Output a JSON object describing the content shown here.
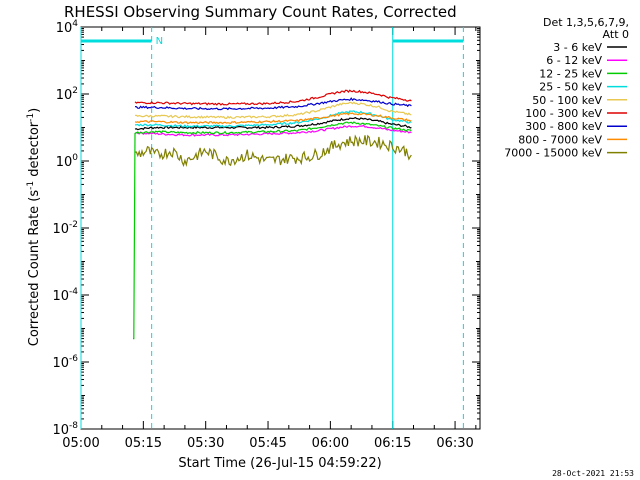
{
  "chart_data": {
    "type": "line",
    "title": "RHESSI Observing Summary Count Rates, Corrected",
    "xlabel": "Start Time (26-Jul-15 04:59:22)",
    "ylabel_main": "Corrected Count Rate (s",
    "ylabel_sup1": "-1",
    "ylabel_mid": " detector",
    "ylabel_sup2": "-1",
    "ylabel_end": ")",
    "x_unit": "minutes after 05:00",
    "xlim": [
      0,
      96
    ],
    "ylim_log10": [
      -8,
      4
    ],
    "y_scale": "log",
    "x_ticks": [
      {
        "v": 0,
        "label": "05:00"
      },
      {
        "v": 15,
        "label": "05:15"
      },
      {
        "v": 30,
        "label": "05:30"
      },
      {
        "v": 45,
        "label": "05:45"
      },
      {
        "v": 60,
        "label": "06:00"
      },
      {
        "v": 75,
        "label": "06:15"
      },
      {
        "v": 90,
        "label": "06:30"
      }
    ],
    "y_ticks": [
      {
        "exp": 4,
        "base": "10",
        "sup": "4"
      },
      {
        "exp": 2,
        "base": "10",
        "sup": "2"
      },
      {
        "exp": 0,
        "base": "10",
        "sup": "0"
      },
      {
        "exp": -2,
        "base": "10",
        "sup": "-2"
      },
      {
        "exp": -4,
        "base": "10",
        "sup": "-4"
      },
      {
        "exp": -6,
        "base": "10",
        "sup": "-6"
      },
      {
        "exp": -8,
        "base": "10",
        "sup": "-8"
      }
    ],
    "legend_header": [
      "Det 1,3,5,6,7,9,",
      "Att 0"
    ],
    "legend_placement": "right",
    "series": [
      {
        "name": "3 - 6 keV",
        "color": "#000000",
        "x": [
          13,
          18,
          25,
          35,
          45,
          52,
          57,
          62,
          65,
          68,
          72,
          74,
          78,
          79.5
        ],
        "y": [
          9,
          10,
          10,
          10,
          10,
          11,
          13,
          17,
          19,
          18,
          15,
          13,
          11,
          10
        ]
      },
      {
        "name": "6 - 12 keV",
        "color": "#ff00ff",
        "x": [
          13,
          18,
          25,
          35,
          45,
          52,
          57,
          62,
          65,
          68,
          72,
          74,
          78,
          79.5
        ],
        "y": [
          7,
          6.5,
          6,
          6,
          6.5,
          7,
          8,
          10,
          11,
          11,
          9.5,
          8.5,
          7.5,
          7
        ]
      },
      {
        "name": "12 - 25 keV",
        "color": "#00cc00",
        "x": [
          12.5,
          12.7,
          13,
          18,
          25,
          35,
          45,
          52,
          57,
          62,
          65,
          68,
          72,
          74,
          78,
          79.5
        ],
        "y": [
          5e-06,
          5e-06,
          7,
          7.5,
          7,
          7,
          7.5,
          8,
          10,
          13,
          14,
          13,
          11,
          10,
          8.5,
          8
        ]
      },
      {
        "name": "25 - 50 keV",
        "color": "#00dddd",
        "x": [
          13,
          18,
          25,
          35,
          45,
          52,
          57,
          62,
          65,
          68,
          72,
          74,
          78,
          79.5
        ],
        "y": [
          12,
          12,
          11,
          11,
          12,
          14,
          18,
          26,
          30,
          28,
          22,
          18,
          15,
          14
        ]
      },
      {
        "name": "50 - 100 keV",
        "color": "#e8c850",
        "x": [
          13,
          18,
          25,
          35,
          45,
          52,
          57,
          62,
          65,
          68,
          72,
          74,
          78,
          79.5
        ],
        "y": [
          22,
          22,
          21,
          20,
          21,
          24,
          32,
          48,
          55,
          50,
          40,
          32,
          26,
          24
        ]
      },
      {
        "name": "100 - 300 keV",
        "color": "#dd0000",
        "x": [
          13,
          18,
          25,
          35,
          45,
          52,
          57,
          62,
          65,
          68,
          72,
          74,
          78,
          79.5
        ],
        "y": [
          55,
          55,
          52,
          50,
          52,
          60,
          80,
          115,
          125,
          115,
          95,
          80,
          68,
          62
        ]
      },
      {
        "name": "300 - 800 keV",
        "color": "#0000cc",
        "x": [
          13,
          18,
          25,
          35,
          45,
          52,
          57,
          62,
          65,
          68,
          72,
          74,
          78,
          79.5
        ],
        "y": [
          40,
          40,
          37,
          36,
          38,
          42,
          52,
          65,
          70,
          66,
          58,
          52,
          46,
          44
        ]
      },
      {
        "name": "800 - 7000 keV",
        "color": "#ff8c00",
        "x": [
          13,
          18,
          25,
          35,
          45,
          52,
          57,
          62,
          65,
          68,
          72,
          74,
          78,
          79.5
        ],
        "y": [
          15,
          15,
          14,
          14,
          15,
          16,
          19,
          24,
          26,
          25,
          22,
          20,
          17,
          16
        ]
      },
      {
        "name": "7000 - 15000 keV",
        "color": "#808000",
        "x": [
          13,
          16,
          18,
          22,
          25,
          30,
          35,
          40,
          45,
          50,
          54,
          57,
          60,
          62,
          65,
          68,
          72,
          74,
          76,
          78,
          79.5
        ],
        "y": [
          1.5,
          2,
          1.5,
          2,
          1,
          2,
          1,
          1.5,
          1,
          1.2,
          1.3,
          1.6,
          2.5,
          3.3,
          4,
          4,
          3.5,
          3,
          2.5,
          2,
          1.5
        ]
      }
    ],
    "vlines": [
      {
        "x": 0,
        "color": "#00dddd",
        "style": "solid"
      },
      {
        "x": 17,
        "color": "#00dddd",
        "style": "dashed"
      },
      {
        "x": 75,
        "color": "#00dddd",
        "style": "solid"
      },
      {
        "x": 92,
        "color": "#00dddd",
        "style": "dashed"
      }
    ],
    "top_bars": [
      {
        "x": [
          0,
          17
        ],
        "color": "#00dddd",
        "label": "N"
      },
      {
        "x": [
          75,
          92
        ],
        "color": "#00dddd",
        "label": ""
      }
    ]
  },
  "footer_timestamp": "28-Oct-2021 21:53"
}
